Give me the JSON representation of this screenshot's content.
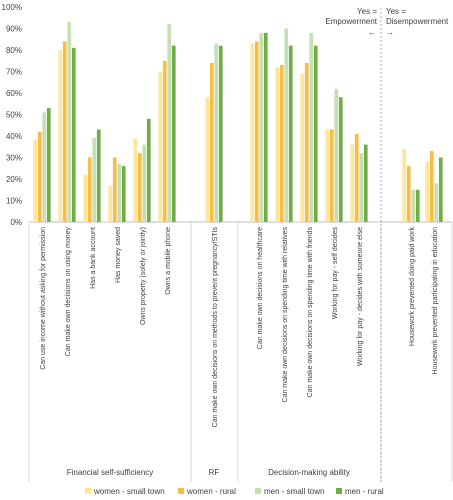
{
  "chart_data": {
    "type": "bar",
    "ylim": [
      0,
      100
    ],
    "y_ticks": [
      "0%",
      "10%",
      "20%",
      "30%",
      "40%",
      "50%",
      "60%",
      "70%",
      "80%",
      "90%",
      "100%"
    ],
    "grid": false,
    "legend_position": "bottom",
    "categories": [
      "Can use income without asking for permission",
      "Can make own decisions on using money",
      "Has a bank account",
      "Has money saved",
      "Owns property (solely or jointly)",
      "Owns a mobile phone",
      "Can make own decisions on  methods to prevent pregnancy/STIs",
      "Can make own decisions on healthcare",
      "Can make own decisions on spending time with relatives",
      "Can make own decisions on spending time with friends",
      "Working for pay - self decides",
      "Working for pay - decides with someone else",
      "Housework prevented doing paid work",
      "Housework prevented participating in education"
    ],
    "series": [
      {
        "name": "women - small town",
        "color": "#ffe699",
        "values": [
          38,
          80,
          22,
          17,
          39,
          70,
          58,
          83,
          72,
          69,
          43,
          36,
          34,
          28
        ]
      },
      {
        "name": "women - rural",
        "color": "#f7be45",
        "values": [
          42,
          84,
          30,
          30,
          32,
          75,
          74,
          84,
          73,
          74,
          43,
          41,
          26,
          33
        ]
      },
      {
        "name": "men - small town",
        "color": "#c5e0b4",
        "values": [
          51,
          93,
          39,
          27,
          36,
          92,
          83,
          88,
          90,
          88,
          62,
          32,
          15,
          18
        ]
      },
      {
        "name": "men - rural",
        "color": "#70ad47",
        "values": [
          53,
          81,
          43,
          26,
          48,
          82,
          82,
          88,
          82,
          82,
          58,
          36,
          15,
          30
        ]
      }
    ],
    "groups": [
      {
        "label": "Financial self-sufficiency",
        "start": 0,
        "end": 5
      },
      {
        "label": "RF",
        "start": 6,
        "end": 6
      },
      {
        "label": "Decision-making ability",
        "start": 7,
        "end": 11
      },
      {
        "label": "",
        "start": 12,
        "end": 13
      }
    ],
    "annotations": [
      {
        "text": [
          "Yes =",
          "Empowerment"
        ],
        "arrow": "←"
      },
      {
        "text": [
          "Yes =",
          "Disempowerment"
        ],
        "arrow": "→"
      }
    ]
  }
}
